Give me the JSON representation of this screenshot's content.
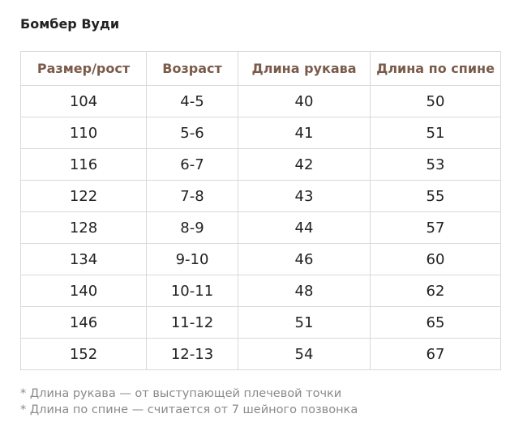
{
  "title": "Бомбер Вуди",
  "table": {
    "header": [
      "Размер/рост",
      "Возраст",
      "Длина рукава",
      "Длина по спине"
    ],
    "rows": [
      [
        104,
        "4-5",
        40,
        50
      ],
      [
        110,
        "5-6",
        41,
        51
      ],
      [
        116,
        "6-7",
        42,
        53
      ],
      [
        122,
        "7-8",
        43,
        55
      ],
      [
        128,
        "8-9",
        44,
        57
      ],
      [
        134,
        "9-10",
        46,
        60
      ],
      [
        140,
        "10-11",
        48,
        62
      ],
      [
        146,
        "11-12",
        51,
        65
      ],
      [
        152,
        "12-13",
        54,
        67
      ]
    ]
  },
  "notes": [
    "* Длина рукава — от выступающей плечевой точки",
    "* Длина по спине — считается от 7 шейного позвонка"
  ]
}
